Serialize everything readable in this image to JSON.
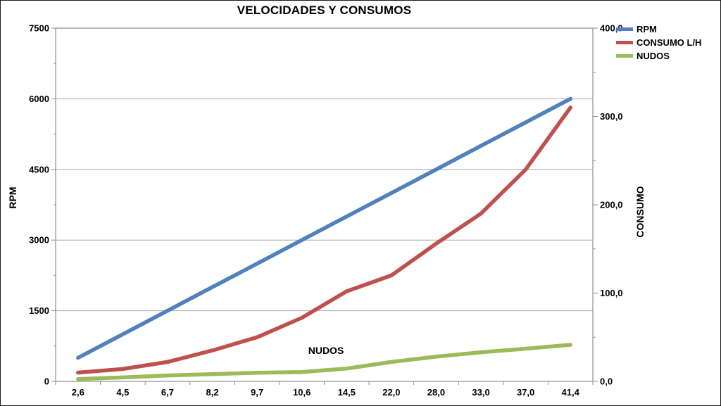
{
  "title": "VELOCIDADES Y CONSUMOS",
  "annotation": "NUDOS",
  "left_axis": {
    "title": "RPM",
    "min": 0,
    "max": 7500,
    "major": 1500,
    "minor": 750,
    "tick_labels": [
      "0",
      "1500",
      "3000",
      "4500",
      "6000",
      "7500"
    ]
  },
  "right_axis": {
    "title": "CONSUMO",
    "min": 0,
    "max": 400,
    "major": 100,
    "minor": 50,
    "tick_labels": [
      "0,0",
      "100,0",
      "200,0",
      "300,0",
      "400,0"
    ]
  },
  "x_axis": {
    "labels": [
      "2,6",
      "4,5",
      "6,7",
      "8,2",
      "9,7",
      "10,6",
      "14,5",
      "22,0",
      "28,0",
      "33,0",
      "37,0",
      "41,4"
    ]
  },
  "legend": {
    "items": [
      {
        "label": "RPM",
        "color": "#4F81BD"
      },
      {
        "label": "CONSUMO L/H",
        "color": "#C0504D"
      },
      {
        "label": "NUDOS",
        "color": "#9BBB59"
      }
    ]
  },
  "colors": {
    "gridline": "#a8a8a8",
    "axis": "#8e8e8e",
    "text": "#000000"
  },
  "chart_data": {
    "type": "line",
    "title": "VELOCIDADES Y CONSUMOS",
    "categories": [
      2.6,
      4.5,
      6.7,
      8.2,
      9.7,
      10.6,
      14.5,
      22.0,
      28.0,
      33.0,
      37.0,
      41.4
    ],
    "xlabel": "NUDOS",
    "left_ylabel": "RPM",
    "right_ylabel": "CONSUMO",
    "left_ylim": [
      0,
      7500
    ],
    "right_ylim": [
      0,
      400
    ],
    "grid": true,
    "legend_position": "top-right",
    "series": [
      {
        "name": "RPM",
        "axis": "left",
        "color": "#4F81BD",
        "values": [
          500,
          1000,
          1500,
          2000,
          2500,
          3000,
          3500,
          4000,
          4500,
          5000,
          5500,
          6000
        ]
      },
      {
        "name": "CONSUMO L/H",
        "axis": "right",
        "color": "#C0504D",
        "values": [
          10,
          14,
          22,
          35,
          50,
          72,
          102,
          120,
          156,
          190,
          240,
          310
        ]
      },
      {
        "name": "NUDOS",
        "axis": "right",
        "color": "#9BBB59",
        "values": [
          2.6,
          4.5,
          6.7,
          8.2,
          9.7,
          10.6,
          14.5,
          22.0,
          28.0,
          33.0,
          37.0,
          41.4
        ]
      }
    ]
  }
}
